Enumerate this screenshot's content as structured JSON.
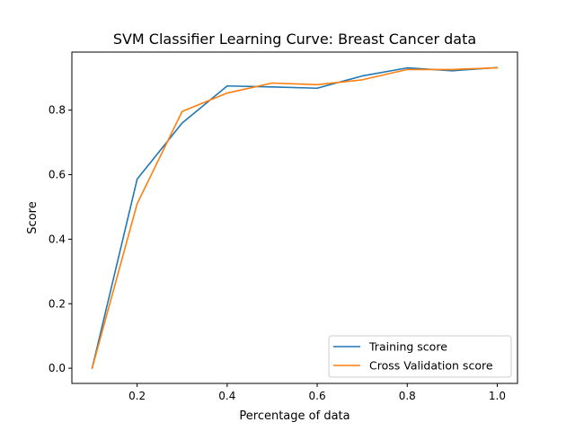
{
  "chart_data": {
    "type": "line",
    "title": "SVM Classifier Learning Curve: Breast Cancer data",
    "xlabel": "Percentage of data",
    "ylabel": "Score",
    "xlim": [
      0.055,
      1.045
    ],
    "ylim": [
      -0.047,
      0.98
    ],
    "xticks": [
      0.2,
      0.4,
      0.6,
      0.8,
      1.0
    ],
    "xtick_labels": [
      "0.2",
      "0.4",
      "0.6",
      "0.8",
      "1.0"
    ],
    "yticks": [
      0.0,
      0.2,
      0.4,
      0.6,
      0.8
    ],
    "ytick_labels": [
      "0.0",
      "0.2",
      "0.4",
      "0.6",
      "0.8"
    ],
    "grid": false,
    "legend_position": "lower-right",
    "x": [
      0.1,
      0.2,
      0.3,
      0.4,
      0.5,
      0.6,
      0.7,
      0.8,
      0.9,
      1.0
    ],
    "series": [
      {
        "name": "Training score",
        "color": "#1f77b4",
        "values": [
          0.0,
          0.586,
          0.76,
          0.875,
          0.872,
          0.868,
          0.906,
          0.931,
          0.922,
          0.932
        ]
      },
      {
        "name": "Cross Validation score",
        "color": "#ff7f0e",
        "values": [
          0.0,
          0.51,
          0.796,
          0.853,
          0.884,
          0.879,
          0.894,
          0.926,
          0.926,
          0.931
        ]
      }
    ]
  }
}
